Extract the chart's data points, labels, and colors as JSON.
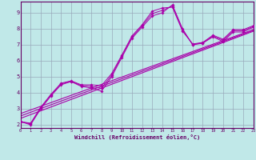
{
  "xlabel": "Windchill (Refroidissement éolien,°C)",
  "bg_color": "#c0e8e8",
  "line_color": "#aa00aa",
  "grid_color": "#99aabb",
  "border_color": "#660066",
  "xlim": [
    0,
    23
  ],
  "ylim": [
    1.8,
    9.7
  ],
  "xtick_vals": [
    0,
    1,
    2,
    3,
    4,
    5,
    6,
    7,
    8,
    9,
    10,
    11,
    12,
    13,
    14,
    15,
    16,
    17,
    18,
    19,
    20,
    21,
    22,
    23
  ],
  "ytick_vals": [
    2,
    3,
    4,
    5,
    6,
    7,
    8,
    9
  ],
  "line1_x": [
    0,
    1,
    2,
    3,
    4,
    5,
    6,
    7,
    8,
    9,
    10,
    11,
    12,
    13,
    14,
    15,
    16,
    17,
    18,
    19,
    20,
    21,
    22,
    23
  ],
  "line1_y": [
    2.2,
    2.0,
    3.0,
    3.8,
    4.5,
    4.7,
    4.4,
    4.3,
    4.1,
    5.0,
    6.2,
    7.4,
    8.1,
    8.8,
    9.0,
    9.5,
    8.0,
    7.0,
    7.1,
    7.5,
    7.2,
    7.8,
    7.8,
    8.1
  ],
  "line2_x": [
    0,
    1,
    2,
    3,
    4,
    5,
    6,
    7,
    8,
    9,
    10,
    11,
    12,
    13,
    14,
    15,
    16,
    17,
    18,
    19,
    20,
    21,
    22,
    23
  ],
  "line2_y": [
    2.2,
    2.1,
    3.1,
    3.9,
    4.6,
    4.75,
    4.5,
    4.5,
    4.45,
    5.2,
    6.35,
    7.55,
    8.25,
    9.1,
    9.3,
    9.35,
    7.85,
    7.05,
    7.15,
    7.6,
    7.35,
    7.95,
    7.95,
    8.2
  ],
  "line3_x": [
    0,
    1,
    2,
    3,
    4,
    5,
    6,
    7,
    8,
    9,
    10,
    11,
    12,
    13,
    14,
    15,
    16,
    17,
    18,
    19,
    20,
    21,
    22,
    23
  ],
  "line3_y": [
    2.2,
    2.05,
    3.05,
    3.85,
    4.55,
    4.72,
    4.45,
    4.4,
    4.28,
    5.1,
    6.28,
    7.48,
    8.18,
    8.95,
    9.15,
    9.42,
    7.92,
    7.02,
    7.12,
    7.55,
    7.28,
    7.88,
    7.88,
    8.15
  ],
  "trend1_x": [
    0,
    23
  ],
  "trend1_y": [
    2.4,
    7.85
  ],
  "trend2_x": [
    0,
    23
  ],
  "trend2_y": [
    2.7,
    7.95
  ],
  "trend3_x": [
    0,
    23
  ],
  "trend3_y": [
    2.55,
    7.9
  ]
}
